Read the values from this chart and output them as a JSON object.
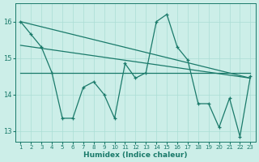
{
  "xlabel": "Humidex (Indice chaleur)",
  "bg_color": "#cceee8",
  "line_color": "#1a7a6a",
  "grid_color": "#aaddd5",
  "xlim": [
    0.5,
    23.5
  ],
  "ylim": [
    12.7,
    16.5
  ],
  "yticks": [
    13,
    14,
    15,
    16
  ],
  "xticks": [
    1,
    2,
    3,
    4,
    5,
    6,
    7,
    8,
    9,
    10,
    11,
    12,
    13,
    14,
    15,
    16,
    17,
    18,
    19,
    20,
    21,
    22,
    23
  ],
  "zigzag_x": [
    1,
    2,
    3,
    4,
    5,
    6,
    7,
    8,
    9,
    10,
    11,
    12,
    13,
    14,
    15,
    16,
    17,
    18,
    19,
    20,
    21,
    22,
    23
  ],
  "zigzag_y": [
    16.0,
    15.65,
    15.3,
    14.6,
    13.35,
    13.35,
    14.2,
    14.35,
    14.0,
    13.35,
    14.85,
    14.45,
    14.6,
    16.0,
    16.2,
    15.3,
    14.95,
    13.75,
    13.75,
    13.1,
    13.9,
    12.85,
    14.5
  ],
  "trend1_x": [
    1,
    23
  ],
  "trend1_y": [
    16.0,
    14.45
  ],
  "trend2_x": [
    1,
    23
  ],
  "trend2_y": [
    15.35,
    14.45
  ],
  "trend3_x": [
    1,
    23
  ],
  "trend3_y": [
    14.6,
    14.6
  ]
}
